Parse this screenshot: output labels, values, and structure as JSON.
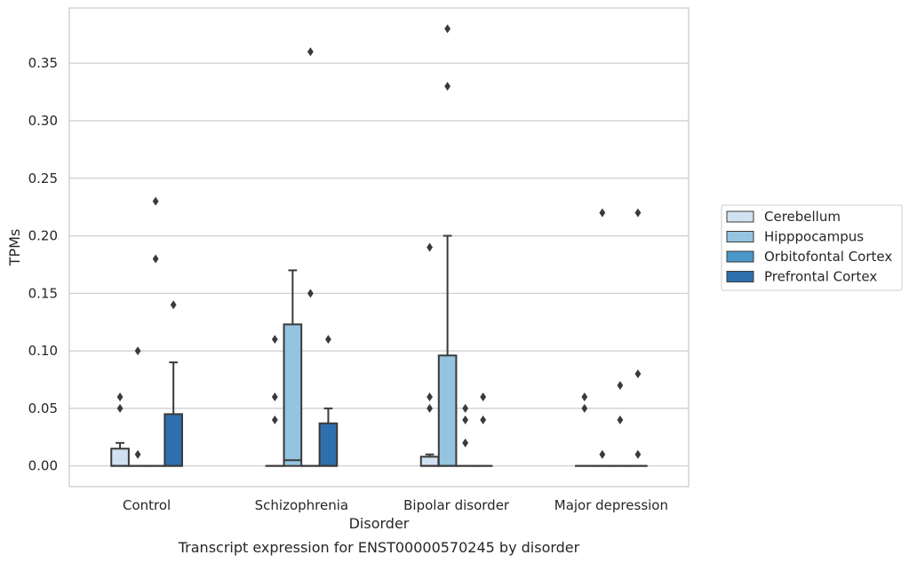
{
  "chart_data": {
    "type": "box",
    "caption": "Transcript expression for ENST00000570245 by disorder",
    "xlabel": "Disorder",
    "ylabel": "TPMs",
    "ylim": [
      -0.018,
      0.398
    ],
    "yticks": [
      0.0,
      0.05,
      0.1,
      0.15,
      0.2,
      0.25,
      0.3,
      0.35
    ],
    "ytick_labels": [
      "0.00",
      "0.05",
      "0.10",
      "0.15",
      "0.20",
      "0.25",
      "0.30",
      "0.35"
    ],
    "grid": true,
    "legend_position": "right",
    "categories": [
      "Control",
      "Schizophrenia",
      "Bipolar disorder",
      "Major depression"
    ],
    "series": [
      {
        "name": "Cerebellum",
        "color": "#d0e1f2",
        "boxes": [
          {
            "whisker_low": 0.0,
            "q1": 0.0,
            "median": 0.0,
            "q3": 0.015,
            "whisker_high": 0.02,
            "outliers": [
              0.05,
              0.06
            ]
          },
          {
            "whisker_low": 0.0,
            "q1": 0.0,
            "median": 0.0,
            "q3": 0.0,
            "whisker_high": 0.0,
            "outliers": [
              0.04,
              0.06,
              0.11
            ]
          },
          {
            "whisker_low": 0.0,
            "q1": 0.0,
            "median": 0.0,
            "q3": 0.008,
            "whisker_high": 0.01,
            "outliers": [
              0.05,
              0.06,
              0.19
            ]
          },
          {
            "whisker_low": 0.0,
            "q1": 0.0,
            "median": 0.0,
            "q3": 0.0,
            "whisker_high": 0.0,
            "outliers": [
              0.05,
              0.06
            ]
          }
        ]
      },
      {
        "name": "Hipppocampus",
        "color": "#94c4df",
        "boxes": [
          {
            "whisker_low": 0.0,
            "q1": 0.0,
            "median": 0.0,
            "q3": 0.0,
            "whisker_high": 0.0,
            "outliers": [
              0.01,
              0.1
            ]
          },
          {
            "whisker_low": 0.0,
            "q1": 0.0,
            "median": 0.005,
            "q3": 0.123,
            "whisker_high": 0.17,
            "outliers": []
          },
          {
            "whisker_low": 0.0,
            "q1": 0.0,
            "median": 0.0,
            "q3": 0.096,
            "whisker_high": 0.2,
            "outliers": [
              0.33,
              0.38
            ]
          },
          {
            "whisker_low": 0.0,
            "q1": 0.0,
            "median": 0.0,
            "q3": 0.0,
            "whisker_high": 0.0,
            "outliers": [
              0.01,
              0.22
            ]
          }
        ]
      },
      {
        "name": "Orbitofontal Cortex",
        "color": "#4a98c9",
        "boxes": [
          {
            "whisker_low": 0.0,
            "q1": 0.0,
            "median": 0.0,
            "q3": 0.0,
            "whisker_high": 0.0,
            "outliers": [
              0.18,
              0.23
            ]
          },
          {
            "whisker_low": 0.0,
            "q1": 0.0,
            "median": 0.0,
            "q3": 0.0,
            "whisker_high": 0.0,
            "outliers": [
              0.15,
              0.36
            ]
          },
          {
            "whisker_low": 0.0,
            "q1": 0.0,
            "median": 0.0,
            "q3": 0.0,
            "whisker_high": 0.0,
            "outliers": [
              0.02,
              0.04,
              0.05
            ]
          },
          {
            "whisker_low": 0.0,
            "q1": 0.0,
            "median": 0.0,
            "q3": 0.0,
            "whisker_high": 0.0,
            "outliers": [
              0.04,
              0.07
            ]
          }
        ]
      },
      {
        "name": "Prefrontal Cortex",
        "color": "#2e6fae",
        "boxes": [
          {
            "whisker_low": 0.0,
            "q1": 0.0,
            "median": 0.0,
            "q3": 0.045,
            "whisker_high": 0.09,
            "outliers": [
              0.14
            ]
          },
          {
            "whisker_low": 0.0,
            "q1": 0.0,
            "median": 0.0,
            "q3": 0.037,
            "whisker_high": 0.05,
            "outliers": [
              0.11
            ]
          },
          {
            "whisker_low": 0.0,
            "q1": 0.0,
            "median": 0.0,
            "q3": 0.0,
            "whisker_high": 0.0,
            "outliers": [
              0.04,
              0.06
            ]
          },
          {
            "whisker_low": 0.0,
            "q1": 0.0,
            "median": 0.0,
            "q3": 0.0,
            "whisker_high": 0.0,
            "outliers": [
              0.01,
              0.08,
              0.22
            ]
          }
        ]
      }
    ]
  }
}
